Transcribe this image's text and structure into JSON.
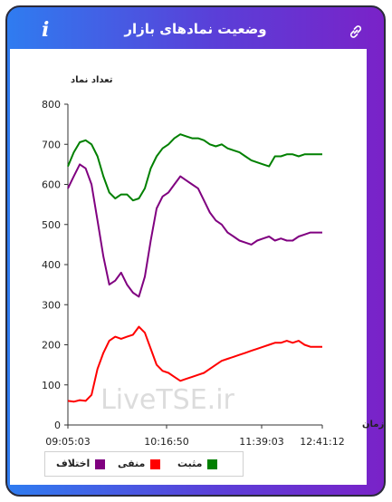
{
  "header": {
    "title": "وضعیت نمادهای بازار"
  },
  "watermark": "LiveTSE.ir",
  "colors": {
    "positive": "#008000",
    "negative": "#ff0000",
    "diff": "#800080"
  },
  "legend": [
    {
      "label": "مثبت",
      "color": "#008000"
    },
    {
      "label": "منفی",
      "color": "#ff0000"
    },
    {
      "label": "اختلاف",
      "color": "#800080"
    }
  ],
  "chart_data": {
    "type": "line",
    "ylabel": "تعداد نماد",
    "xlabel": "زمان",
    "ylim": [
      0,
      800
    ],
    "yticks": [
      0,
      100,
      200,
      300,
      400,
      500,
      600,
      700,
      800
    ],
    "xticks": [
      "09:05:03",
      "10:16:50",
      "11:39:03",
      "12:41:12"
    ],
    "x": [
      "09:05",
      "09:10",
      "09:15",
      "09:20",
      "09:25",
      "09:30",
      "09:35",
      "09:40",
      "09:45",
      "09:50",
      "09:55",
      "10:00",
      "10:05",
      "10:10",
      "10:15",
      "10:20",
      "10:25",
      "10:30",
      "10:35",
      "10:40",
      "10:45",
      "10:50",
      "10:55",
      "11:00",
      "11:05",
      "11:10",
      "11:15",
      "11:20",
      "11:25",
      "11:30",
      "11:35",
      "11:40",
      "11:45",
      "11:50",
      "11:55",
      "12:00",
      "12:05",
      "12:10",
      "12:15",
      "12:20",
      "12:25",
      "12:30",
      "12:35",
      "12:40"
    ],
    "series": [
      {
        "name": "مثبت",
        "values": [
          645,
          680,
          705,
          710,
          700,
          670,
          620,
          580,
          565,
          575,
          575,
          560,
          565,
          590,
          640,
          670,
          690,
          700,
          715,
          725,
          720,
          715,
          715,
          710,
          700,
          695,
          700,
          690,
          685,
          680,
          670,
          660,
          655,
          650,
          645,
          670,
          670,
          675,
          675,
          670,
          675,
          675,
          675,
          675
        ]
      },
      {
        "name": "منفی",
        "values": [
          60,
          58,
          62,
          60,
          75,
          140,
          180,
          210,
          220,
          215,
          220,
          225,
          245,
          230,
          190,
          150,
          135,
          130,
          120,
          110,
          115,
          120,
          125,
          130,
          140,
          150,
          160,
          165,
          170,
          175,
          180,
          185,
          190,
          195,
          200,
          205,
          205,
          210,
          205,
          210,
          200,
          195,
          195,
          195
        ]
      },
      {
        "name": "اختلاف",
        "values": [
          590,
          620,
          650,
          640,
          600,
          510,
          420,
          350,
          360,
          380,
          350,
          330,
          320,
          370,
          460,
          540,
          570,
          580,
          600,
          620,
          610,
          600,
          590,
          560,
          530,
          510,
          500,
          480,
          470,
          460,
          455,
          450,
          460,
          465,
          470,
          460,
          465,
          460,
          460,
          470,
          475,
          480,
          480,
          480
        ]
      }
    ]
  }
}
